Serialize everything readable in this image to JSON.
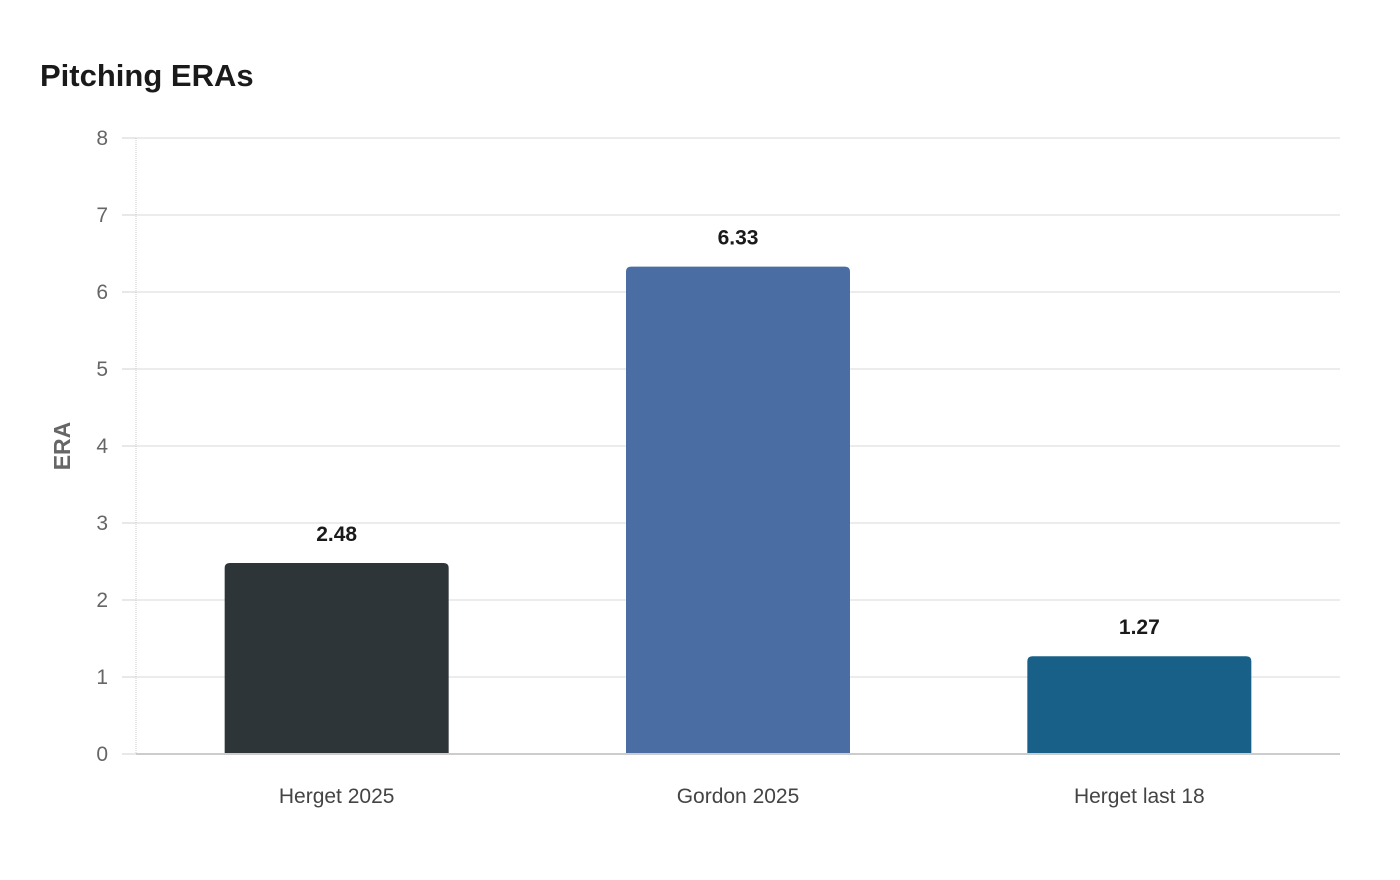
{
  "chart_data": {
    "type": "bar",
    "title": "Pitching ERAs",
    "xlabel": "",
    "ylabel": "ERA",
    "ylim": [
      0,
      8
    ],
    "yticks": [
      0,
      1,
      2,
      3,
      4,
      5,
      6,
      7,
      8
    ],
    "categories": [
      "Herget 2025",
      "Gordon 2025",
      "Herget last 18"
    ],
    "values": [
      2.48,
      6.33,
      1.27
    ],
    "value_labels": [
      "2.48",
      "6.33",
      "1.27"
    ],
    "colors": [
      "#2e3538",
      "#4a6ea3",
      "#186088"
    ],
    "grid": true,
    "legend": "none"
  }
}
